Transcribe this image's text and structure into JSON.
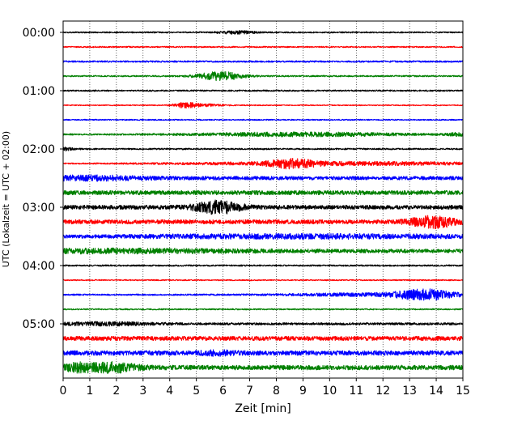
{
  "chart_data": {
    "type": "line",
    "title": "",
    "xlabel": "Zeit  [min]",
    "ylabel": "UTC (Lokalzeit = UTC + 02:00)",
    "xlim": [
      0,
      15
    ],
    "x_ticks": [
      0,
      1,
      2,
      3,
      4,
      5,
      6,
      7,
      8,
      9,
      10,
      11,
      12,
      13,
      14,
      15
    ],
    "x_tick_labels": [
      "0",
      "1",
      "2",
      "3",
      "4",
      "5",
      "6",
      "7",
      "8",
      "9",
      "10",
      "11",
      "12",
      "13",
      "14",
      "15"
    ],
    "y_tick_labels": [
      "00:00",
      "01:00",
      "02:00",
      "03:00",
      "04:00",
      "05:00"
    ],
    "rows_per_hour": 4,
    "grid": "vertical dotted",
    "series_colors": [
      "#000000",
      "#ff0000",
      "#0000ff",
      "#008000"
    ],
    "traces": [
      {
        "noise": 0.8,
        "events": [
          [
            6.5,
            1.6,
            0.5
          ]
        ]
      },
      {
        "noise": 0.8,
        "events": []
      },
      {
        "noise": 1.0,
        "events": []
      },
      {
        "noise": 0.9,
        "events": [
          [
            5.9,
            5.0,
            0.6
          ]
        ]
      },
      {
        "noise": 0.9,
        "events": []
      },
      {
        "noise": 0.6,
        "events": [
          [
            4.6,
            3.0,
            0.35
          ],
          [
            5.5,
            1.2,
            0.4
          ]
        ]
      },
      {
        "noise": 0.7,
        "events": []
      },
      {
        "noise": 0.9,
        "events": [
          [
            9.0,
            2.2,
            2.8
          ],
          [
            14.9,
            2.0,
            0.3
          ]
        ]
      },
      {
        "noise": 0.9,
        "events": [
          [
            0.1,
            2.0,
            0.2
          ]
        ]
      },
      {
        "noise": 0.6,
        "events": [
          [
            8.6,
            4.5,
            0.6
          ],
          [
            10.5,
            2.2,
            4.5
          ]
        ]
      },
      {
        "noise": 2.2,
        "events": [
          [
            1.0,
            2.0,
            1.5
          ]
        ]
      },
      {
        "noise": 2.6,
        "events": []
      },
      {
        "noise": 2.5,
        "events": [
          [
            5.8,
            7.0,
            0.6
          ]
        ]
      },
      {
        "noise": 2.6,
        "events": [
          [
            13.9,
            6.0,
            0.6
          ]
        ]
      },
      {
        "noise": 1.2,
        "events": [
          [
            9.0,
            2.5,
            6.0
          ]
        ]
      },
      {
        "noise": 2.3,
        "events": [
          [
            2.0,
            1.5,
            3.5
          ]
        ]
      },
      {
        "noise": 0.9,
        "events": []
      },
      {
        "noise": 0.7,
        "events": []
      },
      {
        "noise": 0.9,
        "events": [
          [
            13.6,
            6.0,
            0.8
          ],
          [
            11.0,
            1.5,
            2.0
          ]
        ]
      },
      {
        "noise": 0.8,
        "events": []
      },
      {
        "noise": 1.4,
        "events": [
          [
            1.5,
            1.5,
            1.5
          ]
        ]
      },
      {
        "noise": 2.6,
        "events": []
      },
      {
        "noise": 2.8,
        "events": [
          [
            5.8,
            1.5,
            0.5
          ]
        ]
      },
      {
        "noise": 2.8,
        "events": [
          [
            1.9,
            5.0,
            0.6
          ],
          [
            0.6,
            4.0,
            0.4
          ]
        ]
      }
    ]
  }
}
